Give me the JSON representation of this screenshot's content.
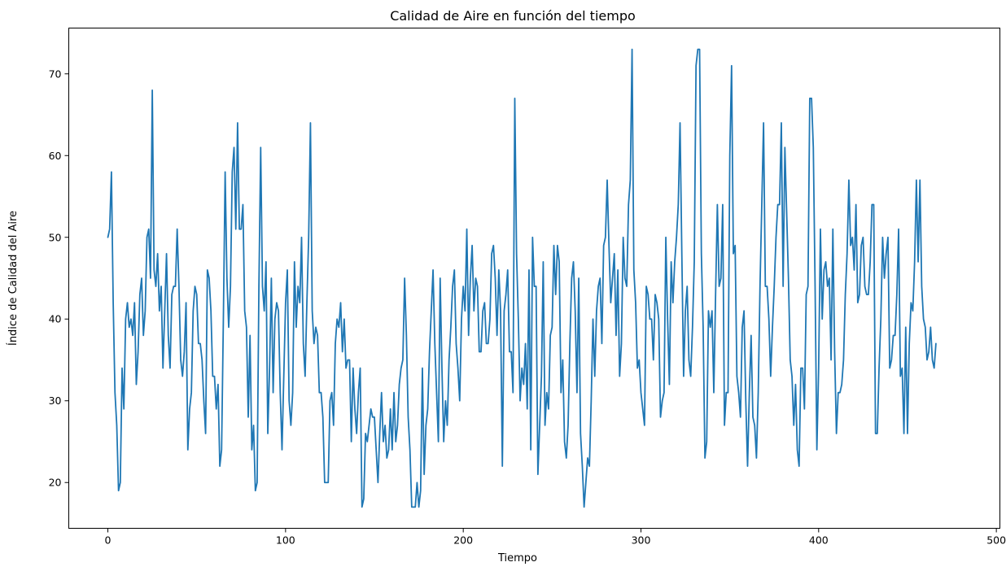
{
  "chart_data": {
    "type": "line",
    "title": "Calidad de Aire en función del tiempo",
    "xlabel": "Tiempo",
    "ylabel": "Índice de Calidad del Aire",
    "xlim": [
      -22,
      502
    ],
    "ylim": [
      14.4,
      75.6
    ],
    "xticks": [
      0,
      100,
      200,
      300,
      400,
      500
    ],
    "yticks": [
      20,
      30,
      40,
      50,
      60,
      70
    ],
    "grid": false,
    "series": [
      {
        "color": "#1f77b4",
        "x_start": 0,
        "x_step": 1,
        "values": [
          50,
          51,
          58,
          42,
          31,
          27,
          19,
          20,
          34,
          29,
          40,
          42,
          39,
          40,
          38,
          42,
          32,
          36,
          43,
          45,
          38,
          41,
          50,
          51,
          45,
          68,
          46,
          44,
          48,
          41,
          44,
          34,
          41,
          48,
          38,
          34,
          43,
          44,
          44,
          51,
          44,
          35,
          33,
          36,
          42,
          24,
          29,
          31,
          41,
          44,
          43,
          37,
          37,
          35,
          30,
          26,
          46,
          45,
          41,
          33,
          33,
          29,
          32,
          22,
          24,
          40,
          58,
          45,
          39,
          44,
          58,
          61,
          51,
          64,
          51,
          51,
          54,
          41,
          39,
          28,
          38,
          24,
          27,
          19,
          20,
          44,
          61,
          44,
          41,
          47,
          26,
          34,
          45,
          31,
          40,
          42,
          41,
          31,
          24,
          33,
          42,
          46,
          30,
          27,
          31,
          47,
          39,
          44,
          42,
          50,
          37,
          33,
          42,
          50,
          64,
          41,
          37,
          39,
          38,
          31,
          31,
          28,
          20,
          20,
          20,
          30,
          31,
          27,
          37,
          40,
          39,
          42,
          36,
          40,
          34,
          35,
          35,
          25,
          34,
          29,
          26,
          31,
          34,
          17,
          18,
          26,
          25,
          27,
          29,
          28,
          28,
          24,
          20,
          26,
          31,
          25,
          27,
          23,
          24,
          29,
          24,
          31,
          25,
          27,
          32,
          34,
          35,
          45,
          38,
          28,
          24,
          17,
          17,
          17,
          20,
          17,
          19,
          34,
          21,
          27,
          29,
          36,
          41,
          46,
          37,
          31,
          25,
          45,
          34,
          25,
          30,
          27,
          35,
          39,
          44,
          46,
          37,
          34,
          30,
          40,
          44,
          41,
          51,
          38,
          45,
          49,
          41,
          45,
          44,
          36,
          36,
          41,
          42,
          37,
          37,
          40,
          48,
          49,
          45,
          38,
          46,
          41,
          22,
          41,
          43,
          46,
          36,
          36,
          31,
          67,
          48,
          40,
          30,
          34,
          32,
          37,
          29,
          46,
          24,
          50,
          44,
          44,
          21,
          27,
          33,
          47,
          27,
          31,
          29,
          38,
          39,
          49,
          43,
          49,
          47,
          31,
          35,
          25,
          23,
          27,
          37,
          45,
          47,
          41,
          31,
          45,
          26,
          22,
          17,
          20,
          23,
          22,
          30,
          40,
          33,
          41,
          44,
          45,
          37,
          49,
          50,
          57,
          49,
          42,
          45,
          48,
          38,
          46,
          33,
          37,
          50,
          45,
          44,
          54,
          57,
          73,
          46,
          42,
          34,
          35,
          31,
          29,
          27,
          44,
          43,
          40,
          40,
          35,
          43,
          42,
          40,
          28,
          30,
          31,
          50,
          40,
          32,
          47,
          42,
          47,
          50,
          54,
          64,
          48,
          33,
          41,
          44,
          35,
          33,
          39,
          47,
          71,
          73,
          73,
          48,
          39,
          23,
          25,
          41,
          39,
          41,
          31,
          43,
          54,
          44,
          45,
          54,
          27,
          31,
          31,
          60,
          71,
          48,
          49,
          33,
          31,
          28,
          39,
          41,
          30,
          22,
          31,
          38,
          28,
          27,
          23,
          31,
          44,
          54,
          64,
          44,
          44,
          40,
          33,
          39,
          44,
          50,
          54,
          54,
          64,
          44,
          61,
          53,
          45,
          35,
          33,
          27,
          32,
          24,
          22,
          34,
          34,
          29,
          43,
          44,
          67,
          67,
          61,
          44,
          24,
          34,
          51,
          40,
          46,
          47,
          44,
          45,
          35,
          51,
          36,
          26,
          31,
          31,
          32,
          35,
          43,
          48,
          57,
          49,
          50,
          46,
          54,
          42,
          43,
          49,
          50,
          44,
          43,
          43,
          47,
          54,
          54,
          26,
          26,
          34,
          40,
          50,
          45,
          48,
          50,
          34,
          35,
          38,
          38,
          43,
          51,
          33,
          34,
          26,
          39,
          26,
          37,
          42,
          41,
          47,
          57,
          47,
          57,
          44,
          40,
          39,
          35,
          36,
          39,
          35,
          34,
          37
        ]
      }
    ]
  }
}
